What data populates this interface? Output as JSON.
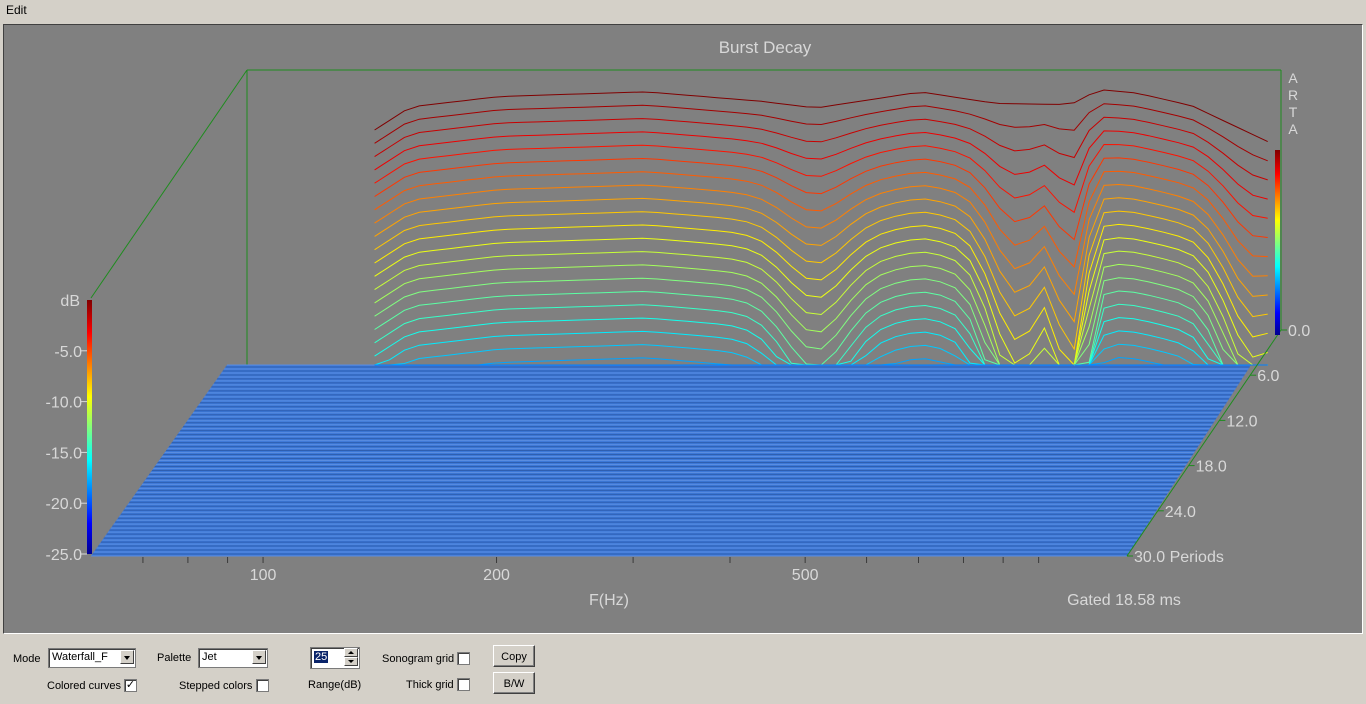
{
  "menu": {
    "edit": "Edit"
  },
  "chart_data": {
    "type": "waterfall",
    "title": "Burst Decay",
    "watermark": "ARTA",
    "xlabel": "F(Hz)",
    "xscale": "log",
    "xrange": [
      60,
      1300
    ],
    "xticks": [
      "100",
      "200",
      "500"
    ],
    "zlabel": "Periods",
    "zticks": [
      "0.0",
      "6.0",
      "12.0",
      "18.0",
      "24.0",
      "30.0 Periods"
    ],
    "color_scale": {
      "label": "dB",
      "ticks": [
        "-5.0",
        "-10.0",
        "-15.0",
        "-20.0",
        "-25.0"
      ],
      "palette": "jet",
      "range": [
        -25,
        0
      ]
    },
    "gated_note": "Gated 18.58 ms",
    "first_slice_db": [
      [
        90,
        -4.5
      ],
      [
        100,
        -2.5
      ],
      [
        130,
        -1.6
      ],
      [
        200,
        -1.2
      ],
      [
        280,
        -2.0
      ],
      [
        330,
        -2.6
      ],
      [
        450,
        -1.2
      ],
      [
        560,
        -2.2
      ],
      [
        700,
        -2.3
      ],
      [
        760,
        -1.0
      ],
      [
        850,
        -1.3
      ],
      [
        1000,
        -2.4
      ],
      [
        1250,
        -5.5
      ]
    ],
    "floor_db": -25
  },
  "controls": {
    "mode_label": "Mode",
    "mode_value": "Waterfall_F",
    "palette_label": "Palette",
    "palette_value": "Jet",
    "range_value": "25",
    "range_label": "Range(dB)",
    "sonogram_grid_label": "Sonogram grid",
    "sonogram_grid_checked": false,
    "thick_grid_label": "Thick grid",
    "thick_grid_checked": false,
    "colored_curves_label": "Colored curves",
    "colored_curves_checked": true,
    "stepped_colors_label": "Stepped colors",
    "stepped_colors_checked": false,
    "copy_label": "Copy",
    "bw_label": "B/W"
  }
}
